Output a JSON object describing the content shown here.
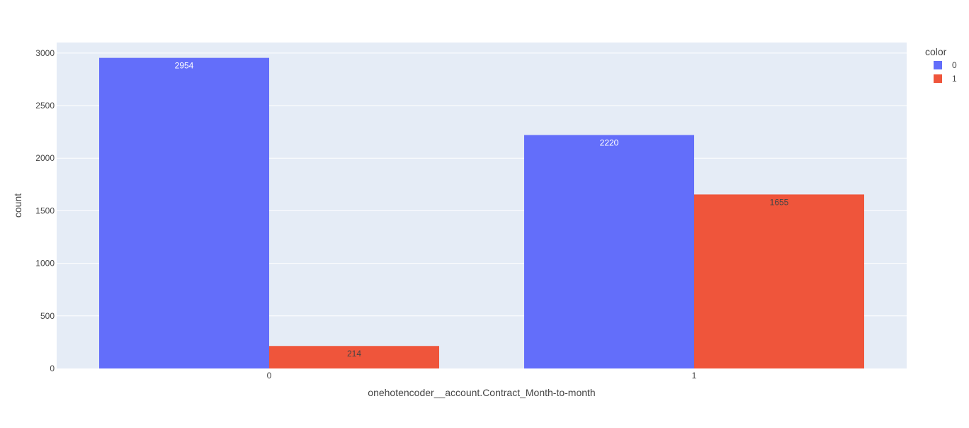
{
  "chart_data": {
    "type": "bar",
    "barmode": "group",
    "categories": [
      "0",
      "1"
    ],
    "series": [
      {
        "name": "0",
        "values": [
          2954,
          2220
        ],
        "color": "#636efa",
        "label_color": "#ffffff"
      },
      {
        "name": "1",
        "values": [
          214,
          1655
        ],
        "color": "#ef553b",
        "label_color": "#444444"
      }
    ],
    "data_labels": [
      [
        "2954",
        "2220"
      ],
      [
        "214",
        "1655"
      ]
    ],
    "title": "",
    "xlabel": "onehotencoder__account.Contract_Month-to-month",
    "ylabel": "count",
    "ylim": [
      0,
      3100
    ],
    "yticks": [
      0,
      500,
      1000,
      1500,
      2000,
      2500,
      3000
    ],
    "ytick_labels": [
      "0",
      "500",
      "1000",
      "1500",
      "2000",
      "2500",
      "3000"
    ],
    "grid": true,
    "legend": {
      "title": "color",
      "placement": "top-right"
    },
    "colors": {
      "plot_background": "#e5ecf6",
      "gridline": "#ffffff",
      "text": "#444444"
    }
  }
}
